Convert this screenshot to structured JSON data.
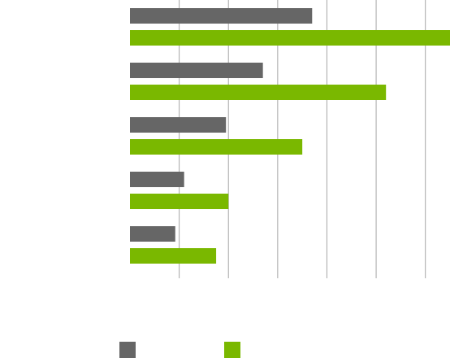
{
  "chart_data": {
    "type": "bar",
    "orientation": "horizontal",
    "title": "",
    "xlabel": "",
    "ylabel": "",
    "categories": [
      "",
      "",
      "",
      "",
      ""
    ],
    "xlim": [
      0,
      6.5
    ],
    "grid": true,
    "legend": "bottom",
    "series": [
      {
        "name": "",
        "color": "#666666",
        "values": [
          3.7,
          2.7,
          1.95,
          1.1,
          0.92
        ]
      },
      {
        "name": "",
        "color": "#7ab800",
        "values": [
          6.5,
          5.2,
          3.5,
          2.0,
          1.75
        ]
      }
    ]
  }
}
